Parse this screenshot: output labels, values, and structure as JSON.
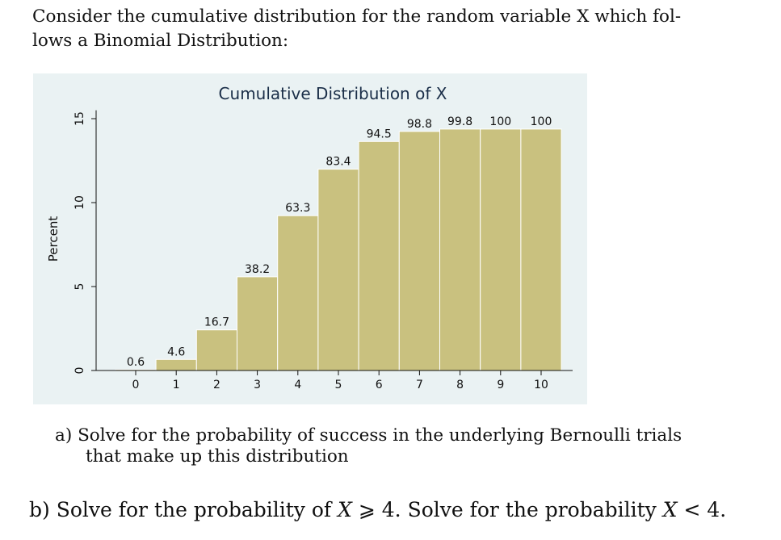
{
  "intro": {
    "line1": "Consider the cumulative distribution for the random variable X which fol-",
    "line2": "lows a Binomial Distribution:"
  },
  "chart_data": {
    "type": "bar",
    "title": "Cumulative Distribution of X",
    "ylabel": "Percent",
    "xlabel": "",
    "categories": [
      "0",
      "1",
      "2",
      "3",
      "4",
      "5",
      "6",
      "7",
      "8",
      "9",
      "10"
    ],
    "value_labels": [
      "0.6",
      "4.6",
      "16.7",
      "38.2",
      "63.3",
      "83.4",
      "94.5",
      "98.8",
      "99.8",
      "100",
      "100"
    ],
    "bar_heights_percent": [
      0.06,
      0.66,
      2.42,
      5.58,
      9.22,
      11.99,
      13.64,
      14.24,
      14.38,
      14.38,
      14.38
    ],
    "yticks": [
      "0",
      "5",
      "10",
      "15"
    ],
    "ylim": [
      0,
      15.5
    ],
    "bar_color": "#c9c17f",
    "background_color": "#eaf2f3",
    "grid": false,
    "legend": "none"
  },
  "questions": {
    "a_label": "a)",
    "a_line1": "Solve for the probability of success in the underlying Bernoulli trials",
    "a_line2": "that make up this distribution",
    "b_label": "b)",
    "b_text_1": "Solve for the probability of ",
    "b_var_1": "X",
    "b_rel_1": " ⩾ 4. Solve for the probability ",
    "b_var_2": "X",
    "b_rel_2": " < 4."
  }
}
